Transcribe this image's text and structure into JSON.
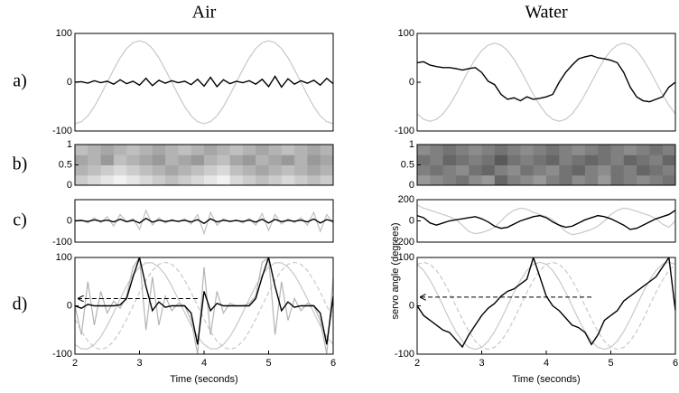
{
  "columns": [
    {
      "title": "Air"
    },
    {
      "title": "Water"
    }
  ],
  "row_labels": [
    "a)",
    "b)",
    "c)",
    "d)"
  ],
  "chart_data": [
    {
      "type": "line",
      "xlim": [
        2,
        6
      ],
      "ylim": [
        -100,
        100
      ],
      "yticks": [
        -100,
        0,
        100
      ],
      "x": [
        2,
        2.1,
        2.2,
        2.3,
        2.4,
        2.5,
        2.6,
        2.7,
        2.8,
        2.9,
        3,
        3.1,
        3.2,
        3.3,
        3.4,
        3.5,
        3.6,
        3.7,
        3.8,
        3.9,
        4,
        4.1,
        4.2,
        4.3,
        4.4,
        4.5,
        4.6,
        4.7,
        4.8,
        4.9,
        5,
        5.1,
        5.2,
        5.3,
        5.4,
        5.5,
        5.6,
        5.7,
        5.8,
        5.9,
        6
      ],
      "series": [
        {
          "color": "#c8c8c8",
          "dash": false,
          "values": [
            -85,
            -81,
            -69,
            -50,
            -26,
            0,
            26,
            50,
            69,
            81,
            85,
            81,
            69,
            50,
            26,
            0,
            -26,
            -50,
            -69,
            -81,
            -85,
            -81,
            -69,
            -50,
            -26,
            0,
            26,
            50,
            69,
            81,
            85,
            81,
            69,
            50,
            26,
            0,
            -26,
            -50,
            -69,
            -81,
            -85
          ]
        },
        {
          "color": "#000000",
          "dash": false,
          "values": [
            0,
            1,
            -2,
            3,
            -1,
            2,
            -4,
            5,
            -3,
            2,
            -6,
            8,
            -7,
            4,
            -2,
            3,
            -1,
            2,
            -5,
            6,
            -8,
            10,
            -9,
            5,
            -3,
            2,
            -1,
            3,
            -4,
            6,
            -9,
            12,
            -10,
            7,
            -4,
            3,
            -2,
            4,
            -6,
            8,
            -3
          ]
        }
      ]
    },
    {
      "type": "line",
      "xlim": [
        2,
        6
      ],
      "ylim": [
        -100,
        100
      ],
      "yticks": [
        -100,
        0,
        100
      ],
      "x": [
        2,
        2.1,
        2.2,
        2.3,
        2.4,
        2.5,
        2.6,
        2.7,
        2.8,
        2.9,
        3,
        3.1,
        3.2,
        3.3,
        3.4,
        3.5,
        3.6,
        3.7,
        3.8,
        3.9,
        4,
        4.1,
        4.2,
        4.3,
        4.4,
        4.5,
        4.6,
        4.7,
        4.8,
        4.9,
        5,
        5.1,
        5.2,
        5.3,
        5.4,
        5.5,
        5.6,
        5.7,
        5.8,
        5.9,
        6
      ],
      "series": [
        {
          "color": "#c8c8c8",
          "dash": false,
          "values": [
            -65,
            -76,
            -80,
            -76,
            -65,
            -47,
            -25,
            0,
            25,
            47,
            65,
            76,
            80,
            76,
            65,
            47,
            25,
            0,
            -25,
            -47,
            -65,
            -76,
            -80,
            -76,
            -65,
            -47,
            -25,
            0,
            25,
            47,
            65,
            76,
            80,
            76,
            65,
            47,
            25,
            0,
            -25,
            -47,
            -65
          ]
        },
        {
          "color": "#000000",
          "dash": false,
          "values": [
            40,
            42,
            35,
            32,
            30,
            30,
            28,
            25,
            28,
            30,
            20,
            2,
            -5,
            -25,
            -35,
            -32,
            -38,
            -30,
            -35,
            -33,
            -30,
            -25,
            0,
            20,
            35,
            48,
            52,
            55,
            50,
            48,
            45,
            40,
            20,
            -10,
            -30,
            -38,
            -40,
            -35,
            -30,
            -10,
            0
          ]
        }
      ]
    },
    {
      "type": "heatmap",
      "xlim": [
        2,
        6
      ],
      "ylim": [
        0,
        1
      ],
      "yticks": [
        0,
        0.5,
        1
      ],
      "z": [
        [
          0.8,
          0.85,
          0.9,
          0.95,
          0.9,
          0.85,
          0.8,
          0.75,
          0.8,
          0.85,
          0.9,
          0.95,
          0.85,
          0.8,
          0.75,
          0.8,
          0.85,
          0.8,
          0.75,
          0.8
        ],
        [
          0.7,
          0.75,
          0.8,
          0.85,
          0.8,
          0.75,
          0.7,
          0.65,
          0.7,
          0.75,
          0.8,
          0.85,
          0.75,
          0.7,
          0.65,
          0.7,
          0.75,
          0.7,
          0.65,
          0.7
        ],
        [
          0.65,
          0.7,
          0.6,
          0.75,
          0.7,
          0.65,
          0.6,
          0.7,
          0.65,
          0.6,
          0.7,
          0.75,
          0.65,
          0.6,
          0.7,
          0.65,
          0.6,
          0.7,
          0.6,
          0.65
        ],
        [
          0.75,
          0.7,
          0.65,
          0.7,
          0.75,
          0.7,
          0.65,
          0.7,
          0.75,
          0.7,
          0.65,
          0.7,
          0.75,
          0.7,
          0.65,
          0.7,
          0.75,
          0.7,
          0.65,
          0.7
        ]
      ]
    },
    {
      "type": "heatmap",
      "xlim": [
        2,
        6
      ],
      "ylim": [
        0,
        1
      ],
      "yticks": [
        0,
        0.5,
        1
      ],
      "z": [
        [
          0.6,
          0.55,
          0.5,
          0.45,
          0.55,
          0.6,
          0.4,
          0.5,
          0.55,
          0.6,
          0.5,
          0.45,
          0.55,
          0.5,
          0.6,
          0.45,
          0.5,
          0.55,
          0.5,
          0.45
        ],
        [
          0.5,
          0.45,
          0.5,
          0.55,
          0.45,
          0.4,
          0.5,
          0.55,
          0.45,
          0.5,
          0.55,
          0.45,
          0.4,
          0.5,
          0.55,
          0.45,
          0.5,
          0.4,
          0.45,
          0.5
        ],
        [
          0.45,
          0.5,
          0.4,
          0.45,
          0.5,
          0.45,
          0.35,
          0.45,
          0.5,
          0.45,
          0.4,
          0.5,
          0.45,
          0.4,
          0.45,
          0.5,
          0.4,
          0.45,
          0.5,
          0.4
        ],
        [
          0.55,
          0.5,
          0.45,
          0.5,
          0.55,
          0.5,
          0.45,
          0.5,
          0.55,
          0.5,
          0.45,
          0.5,
          0.55,
          0.5,
          0.45,
          0.5,
          0.55,
          0.5,
          0.45,
          0.5
        ]
      ]
    },
    {
      "type": "line",
      "xlim": [
        2,
        6
      ],
      "ylim": [
        -100,
        100
      ],
      "yticks": [
        -100,
        0
      ],
      "x": [
        2,
        2.1,
        2.2,
        2.3,
        2.4,
        2.5,
        2.6,
        2.7,
        2.8,
        2.9,
        3,
        3.1,
        3.2,
        3.3,
        3.4,
        3.5,
        3.6,
        3.7,
        3.8,
        3.9,
        4,
        4.1,
        4.2,
        4.3,
        4.4,
        4.5,
        4.6,
        4.7,
        4.8,
        4.9,
        5,
        5.1,
        5.2,
        5.3,
        5.4,
        5.5,
        5.6,
        5.7,
        5.8,
        5.9,
        6
      ],
      "series": [
        {
          "color": "#c0c0c0",
          "dash": false,
          "values": [
            0,
            5,
            -10,
            15,
            -8,
            20,
            -25,
            30,
            -5,
            10,
            -40,
            50,
            -20,
            15,
            -10,
            8,
            -5,
            10,
            -15,
            30,
            -60,
            40,
            -20,
            10,
            -5,
            5,
            -10,
            12,
            -20,
            35,
            -45,
            30,
            -15,
            10,
            -8,
            15,
            -20,
            40,
            -50,
            30,
            -10
          ]
        },
        {
          "color": "#000000",
          "dash": false,
          "values": [
            0,
            2,
            -3,
            5,
            -2,
            4,
            -5,
            8,
            -4,
            3,
            -10,
            12,
            -6,
            4,
            -3,
            2,
            -2,
            3,
            -5,
            6,
            -12,
            10,
            -5,
            3,
            -2,
            2,
            -3,
            4,
            -6,
            8,
            -10,
            7,
            -4,
            3,
            -2,
            4,
            -5,
            9,
            -10,
            6,
            -2
          ]
        }
      ]
    },
    {
      "type": "line",
      "xlim": [
        2,
        6
      ],
      "ylim": [
        -200,
        200
      ],
      "yticks": [
        -200,
        0,
        200
      ],
      "x": [
        2,
        2.1,
        2.2,
        2.3,
        2.4,
        2.5,
        2.6,
        2.7,
        2.8,
        2.9,
        3,
        3.1,
        3.2,
        3.3,
        3.4,
        3.5,
        3.6,
        3.7,
        3.8,
        3.9,
        4,
        4.1,
        4.2,
        4.3,
        4.4,
        4.5,
        4.6,
        4.7,
        4.8,
        4.9,
        5,
        5.1,
        5.2,
        5.3,
        5.4,
        5.5,
        5.6,
        5.7,
        5.8,
        5.9,
        6
      ],
      "series": [
        {
          "color": "#c8c8c8",
          "dash": false,
          "values": [
            150,
            120,
            100,
            80,
            60,
            40,
            10,
            -40,
            -100,
            -120,
            -110,
            -90,
            -60,
            0,
            60,
            100,
            120,
            110,
            80,
            60,
            40,
            10,
            -40,
            -100,
            -130,
            -120,
            -100,
            -80,
            -50,
            0,
            60,
            100,
            120,
            110,
            90,
            70,
            50,
            20,
            -30,
            -60,
            0
          ]
        },
        {
          "color": "#000000",
          "dash": false,
          "values": [
            50,
            30,
            -20,
            -40,
            -20,
            0,
            10,
            20,
            30,
            40,
            20,
            -10,
            -50,
            -70,
            -60,
            -30,
            0,
            20,
            40,
            50,
            30,
            -10,
            -40,
            -60,
            -50,
            -20,
            10,
            30,
            50,
            40,
            20,
            -10,
            -40,
            -80,
            -70,
            -40,
            -10,
            20,
            40,
            60,
            100
          ]
        }
      ]
    },
    {
      "type": "line",
      "xlim": [
        2,
        6
      ],
      "ylim": [
        -100,
        100
      ],
      "yticks": [
        -100,
        0,
        100
      ],
      "xticks": [
        2,
        3,
        4,
        5,
        6
      ],
      "xlabel": "Time (seconds)",
      "x": [
        2,
        2.1,
        2.2,
        2.3,
        2.4,
        2.5,
        2.6,
        2.7,
        2.8,
        2.9,
        3,
        3.1,
        3.2,
        3.3,
        3.4,
        3.5,
        3.6,
        3.7,
        3.8,
        3.9,
        4,
        4.1,
        4.2,
        4.3,
        4.4,
        4.5,
        4.6,
        4.7,
        4.8,
        4.9,
        5,
        5.1,
        5.2,
        5.3,
        5.4,
        5.5,
        5.6,
        5.7,
        5.8,
        5.9,
        6
      ],
      "series": [
        {
          "color": "#c8c8c8",
          "dash": false,
          "values": [
            -80,
            -89,
            -89,
            -80,
            -64,
            -41,
            -14,
            14,
            41,
            64,
            80,
            89,
            89,
            80,
            64,
            41,
            14,
            -14,
            -41,
            -64,
            -80,
            -89,
            -89,
            -80,
            -64,
            -41,
            -14,
            14,
            41,
            64,
            80,
            89,
            89,
            80,
            64,
            41,
            14,
            -14,
            -41,
            -64,
            -80
          ]
        },
        {
          "color": "#c8c8c8",
          "dash": true,
          "values": [
            -28,
            -53,
            -73,
            -86,
            -90,
            -86,
            -73,
            -53,
            -28,
            0,
            28,
            53,
            73,
            86,
            90,
            86,
            73,
            53,
            28,
            0,
            -28,
            -53,
            -73,
            -86,
            -90,
            -86,
            -73,
            -53,
            -28,
            0,
            28,
            53,
            73,
            86,
            90,
            86,
            73,
            53,
            28,
            0,
            -28
          ]
        },
        {
          "color": "#b4b4b4",
          "dash": false,
          "values": [
            0,
            -60,
            50,
            -40,
            30,
            -15,
            10,
            -5,
            20,
            80,
            100,
            -50,
            60,
            -40,
            20,
            -10,
            5,
            0,
            -30,
            -100,
            80,
            -60,
            30,
            -15,
            5,
            0,
            0,
            5,
            20,
            90,
            100,
            -60,
            50,
            -30,
            15,
            -10,
            5,
            0,
            -30,
            -100,
            60
          ]
        },
        {
          "color": "#000000",
          "dash": false,
          "values": [
            0,
            -5,
            3,
            0,
            0,
            0,
            0,
            2,
            15,
            60,
            100,
            40,
            -10,
            8,
            -3,
            0,
            0,
            0,
            -15,
            -80,
            30,
            -10,
            5,
            0,
            0,
            0,
            0,
            0,
            15,
            60,
            100,
            40,
            -10,
            8,
            -3,
            0,
            0,
            0,
            -15,
            -80,
            20
          ]
        }
      ],
      "arrow": {
        "x": [
          3.9,
          2.05
        ],
        "y": [
          15,
          15
        ]
      }
    },
    {
      "type": "line",
      "xlim": [
        2,
        6
      ],
      "ylim": [
        -100,
        100
      ],
      "yticks": [
        -100,
        0,
        100
      ],
      "xticks": [
        2,
        3,
        4,
        5,
        6
      ],
      "xlabel": "Time (seconds)",
      "ylabel": "servo angle (degrees)",
      "x": [
        2,
        2.1,
        2.2,
        2.3,
        2.4,
        2.5,
        2.6,
        2.7,
        2.8,
        2.9,
        3,
        3.1,
        3.2,
        3.3,
        3.4,
        3.5,
        3.6,
        3.7,
        3.8,
        3.9,
        4,
        4.1,
        4.2,
        4.3,
        4.4,
        4.5,
        4.6,
        4.7,
        4.8,
        4.9,
        5,
        5.1,
        5.2,
        5.3,
        5.4,
        5.5,
        5.6,
        5.7,
        5.8,
        5.9,
        6
      ],
      "series": [
        {
          "color": "#c8c8c8",
          "dash": false,
          "values": [
            86,
            73,
            53,
            28,
            0,
            -28,
            -53,
            -73,
            -86,
            -90,
            -86,
            -73,
            -53,
            -28,
            0,
            28,
            53,
            73,
            86,
            90,
            86,
            73,
            53,
            28,
            0,
            -28,
            -53,
            -73,
            -86,
            -90,
            -86,
            -73,
            -53,
            -28,
            0,
            28,
            53,
            73,
            86,
            90,
            86
          ]
        },
        {
          "color": "#c8c8c8",
          "dash": true,
          "values": [
            86,
            90,
            86,
            73,
            53,
            28,
            0,
            -28,
            -53,
            -73,
            -86,
            -90,
            -86,
            -73,
            -53,
            -28,
            0,
            28,
            53,
            73,
            86,
            90,
            86,
            73,
            53,
            28,
            0,
            -28,
            -53,
            -73,
            -86,
            -90,
            -86,
            -73,
            -53,
            -28,
            0,
            28,
            53,
            73,
            86
          ]
        },
        {
          "color": "#000000",
          "dash": false,
          "values": [
            0,
            -20,
            -30,
            -40,
            -50,
            -55,
            -70,
            -85,
            -60,
            -40,
            -20,
            -5,
            5,
            20,
            30,
            35,
            45,
            55,
            100,
            60,
            20,
            0,
            -10,
            -25,
            -40,
            -45,
            -55,
            -80,
            -60,
            -30,
            -20,
            -10,
            10,
            20,
            30,
            40,
            50,
            60,
            80,
            100,
            -10
          ]
        }
      ],
      "arrow": {
        "x": [
          4.7,
          2.05
        ],
        "y": [
          18,
          18
        ]
      }
    }
  ]
}
